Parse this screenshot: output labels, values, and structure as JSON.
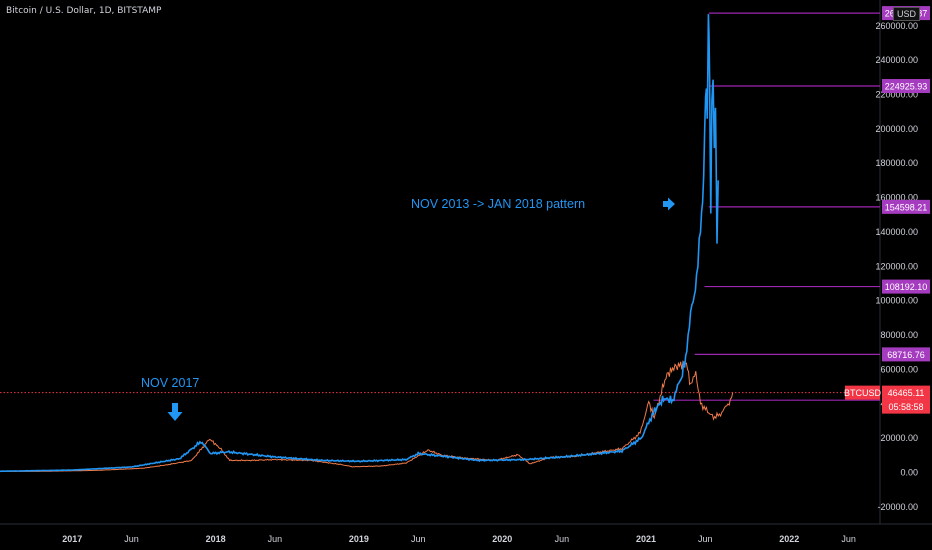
{
  "header": {
    "title": "Bitcoin / U.S. Dollar, 1D, BITSTAMP",
    "currency": "USD"
  },
  "annotations": {
    "pattern_label": "NOV 2013 -> JAN 2018 pattern",
    "nov_label": "NOV 2017",
    "pattern_arrow_icon": "arrow-right-icon",
    "nov_arrow_icon": "arrow-down-icon"
  },
  "colors": {
    "background": "#000000",
    "projection": "#2196f3",
    "price": "#f07a4a",
    "level_line": "#9c27b0",
    "level_tag": "#a53cc0",
    "current_tag": "#f23645",
    "current_line": "#f23645",
    "axis_text": "#d1d4dc"
  },
  "chart_data": {
    "type": "line",
    "title": "Bitcoin / U.S. Dollar, 1D, BITSTAMP",
    "y_unit": "USD",
    "ylim": [
      -30000,
      275000
    ],
    "xlim": [
      "2016-07-01",
      "2022-08-20"
    ],
    "x_ticks": [
      "2017",
      "Jun",
      "2018",
      "Jun",
      "2019",
      "Jun",
      "2020",
      "Jun",
      "2021",
      "Jun",
      "2022",
      "Jun"
    ],
    "y_ticks": [
      "-20000.00",
      "0.00",
      "20000.00",
      "40000.00",
      "60000.00",
      "80000.00",
      "100000.00",
      "120000.00",
      "140000.00",
      "160000.00",
      "180000.00",
      "200000.00",
      "220000.00",
      "240000.00",
      "260000.00"
    ],
    "series": [
      {
        "name": "BTCUSD",
        "points": [
          [
            "2016-07-01",
            670
          ],
          [
            "2016-10-01",
            620
          ],
          [
            "2017-01-01",
            960
          ],
          [
            "2017-03-01",
            1200
          ],
          [
            "2017-05-01",
            1800
          ],
          [
            "2017-07-01",
            2500
          ],
          [
            "2017-09-01",
            4500
          ],
          [
            "2017-11-01",
            7000
          ],
          [
            "2017-12-17",
            19500
          ],
          [
            "2018-01-15",
            13500
          ],
          [
            "2018-02-06",
            7000
          ],
          [
            "2018-04-01",
            7000
          ],
          [
            "2018-06-01",
            7500
          ],
          [
            "2018-09-01",
            7000
          ],
          [
            "2018-11-20",
            4500
          ],
          [
            "2018-12-15",
            3300
          ],
          [
            "2019-03-01",
            3800
          ],
          [
            "2019-05-01",
            5500
          ],
          [
            "2019-06-26",
            13000
          ],
          [
            "2019-08-01",
            10000
          ],
          [
            "2019-10-01",
            8300
          ],
          [
            "2019-12-15",
            7100
          ],
          [
            "2020-02-10",
            10300
          ],
          [
            "2020-03-12",
            5000
          ],
          [
            "2020-05-01",
            8800
          ],
          [
            "2020-07-01",
            9200
          ],
          [
            "2020-09-01",
            11700
          ],
          [
            "2020-11-01",
            13800
          ],
          [
            "2020-12-17",
            23000
          ],
          [
            "2021-01-08",
            41000
          ],
          [
            "2021-01-22",
            32000
          ],
          [
            "2021-02-21",
            56000
          ],
          [
            "2021-03-13",
            61000
          ],
          [
            "2021-04-14",
            64000
          ],
          [
            "2021-04-25",
            50000
          ],
          [
            "2021-05-08",
            58000
          ],
          [
            "2021-05-20",
            40000
          ],
          [
            "2021-06-22",
            32000
          ],
          [
            "2021-07-10",
            34000
          ],
          [
            "2021-08-01",
            40500
          ],
          [
            "2021-08-10",
            46465
          ]
        ]
      },
      {
        "name": "NOV 2013 -> JAN 2018 pattern",
        "points": [
          [
            "2016-07-01",
            700
          ],
          [
            "2017-01-01",
            1400
          ],
          [
            "2017-06-01",
            3200
          ],
          [
            "2017-10-01",
            8000
          ],
          [
            "2017-11-25",
            18000
          ],
          [
            "2017-12-20",
            11000
          ],
          [
            "2018-02-01",
            12000
          ],
          [
            "2018-06-01",
            9000
          ],
          [
            "2018-10-01",
            7000
          ],
          [
            "2019-01-01",
            6500
          ],
          [
            "2019-05-01",
            7500
          ],
          [
            "2019-06-01",
            11000
          ],
          [
            "2019-08-01",
            9500
          ],
          [
            "2019-11-01",
            7000
          ],
          [
            "2020-03-01",
            7500
          ],
          [
            "2020-06-01",
            9000
          ],
          [
            "2020-09-01",
            11000
          ],
          [
            "2020-11-01",
            12500
          ],
          [
            "2020-12-20",
            20000
          ],
          [
            "2021-01-20",
            35000
          ],
          [
            "2021-02-15",
            43000
          ],
          [
            "2021-03-10",
            42000
          ],
          [
            "2021-04-01",
            55000
          ],
          [
            "2021-04-15",
            70000
          ],
          [
            "2021-04-28",
            98000
          ],
          [
            "2021-05-10",
            110000
          ],
          [
            "2021-05-20",
            140000
          ],
          [
            "2021-05-28",
            170000
          ],
          [
            "2021-06-02",
            226000
          ],
          [
            "2021-06-06",
            200000
          ],
          [
            "2021-06-09",
            267000
          ],
          [
            "2021-06-12",
            225000
          ],
          [
            "2021-06-15",
            160000
          ],
          [
            "2021-06-18",
            210000
          ],
          [
            "2021-06-21",
            232000
          ],
          [
            "2021-06-24",
            180000
          ],
          [
            "2021-06-27",
            220000
          ],
          [
            "2021-07-01",
            126000
          ],
          [
            "2021-07-04",
            170000
          ]
        ]
      }
    ],
    "levels": [
      {
        "value": 267370.87,
        "label": "267370.87"
      },
      {
        "value": 224925.93,
        "label": "224925.93"
      },
      {
        "value": 154598.21,
        "label": "154598.21"
      },
      {
        "value": 108192.1,
        "label": "108192.10"
      },
      {
        "value": 68716.76,
        "label": "68716.76"
      },
      {
        "value": 42066.5,
        "label": "42066.50"
      }
    ],
    "current": {
      "symbol": "BTCUSD",
      "value": 46465.11,
      "label": "46465.11",
      "countdown": "05:58:58"
    }
  }
}
